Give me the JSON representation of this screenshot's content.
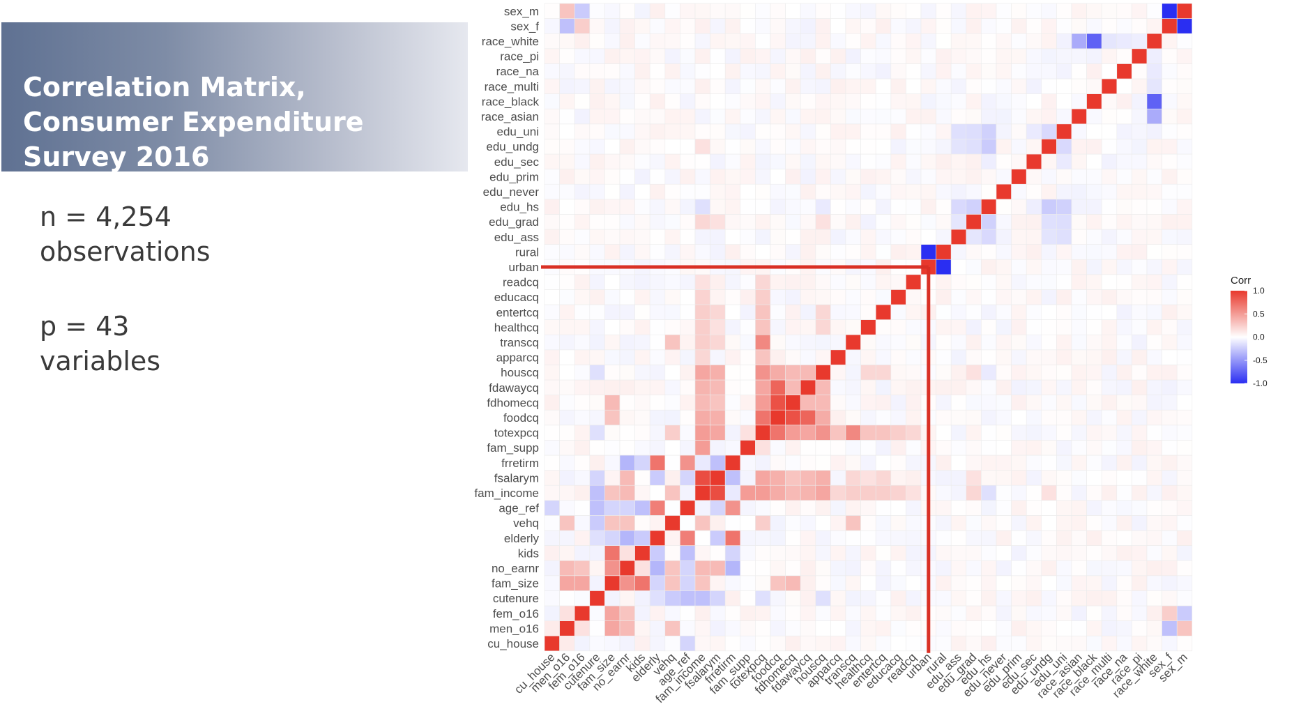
{
  "title": "Correlation Matrix, Consumer Expenditure Survey 2016",
  "stats": {
    "n": "n = 4,254",
    "n_label": "observations",
    "p": "p = 43",
    "p_label": "variables"
  },
  "chart_data": {
    "type": "heatmap",
    "variables": [
      "cu_house",
      "men_o16",
      "fem_o16",
      "cutenure",
      "fam_size",
      "no_earnr",
      "kids",
      "elderly",
      "vehq",
      "age_ref",
      "fam_income",
      "fsalarym",
      "frretirm",
      "fam_supp",
      "totexpcq",
      "foodcq",
      "fdhomecq",
      "fdawaycq",
      "houscq",
      "apparcq",
      "transcq",
      "healthcq",
      "entertcq",
      "educacq",
      "readcq",
      "urban",
      "rural",
      "edu_ass",
      "edu_grad",
      "edu_hs",
      "edu_never",
      "edu_prim",
      "edu_sec",
      "edu_undg",
      "edu_uni",
      "race_asian",
      "race_black",
      "race_multi",
      "race_na",
      "race_pi",
      "race_white",
      "sex_f",
      "sex_m"
    ],
    "legend": {
      "title": "Corr",
      "ticks": [
        "1.0",
        "0.5",
        "0.0",
        "-0.5",
        "-1.0"
      ],
      "placement": "right"
    },
    "colors": {
      "high": "#e8392d",
      "mid": "#ffffff",
      "low": "#2a2ef2",
      "grid": "#ececec",
      "highlight": "#d93025"
    },
    "highlight": {
      "row": "urban",
      "column": "urban"
    },
    "correlations": [
      {
        "a": "sex_m",
        "b": "sex_f",
        "r": -1.0
      },
      {
        "a": "urban",
        "b": "rural",
        "r": -1.0
      },
      {
        "a": "race_white",
        "b": "race_black",
        "r": -0.75
      },
      {
        "a": "race_white",
        "b": "race_asian",
        "r": -0.4
      },
      {
        "a": "race_white",
        "b": "race_multi",
        "r": -0.12
      },
      {
        "a": "race_white",
        "b": "race_na",
        "r": -0.1
      },
      {
        "a": "race_white",
        "b": "race_pi",
        "r": -0.08
      },
      {
        "a": "sex_m",
        "b": "men_o16",
        "r": 0.3
      },
      {
        "a": "sex_f",
        "b": "men_o16",
        "r": -0.3
      },
      {
        "a": "sex_f",
        "b": "fem_o16",
        "r": 0.25
      },
      {
        "a": "sex_m",
        "b": "fem_o16",
        "r": -0.25
      },
      {
        "a": "edu_uni",
        "b": "edu_hs",
        "r": -0.22
      },
      {
        "a": "edu_uni",
        "b": "edu_grad",
        "r": -0.16
      },
      {
        "a": "edu_uni",
        "b": "edu_ass",
        "r": -0.15
      },
      {
        "a": "edu_uni",
        "b": "edu_undg",
        "r": -0.18
      },
      {
        "a": "edu_uni",
        "b": "edu_sec",
        "r": -0.1
      },
      {
        "a": "edu_undg",
        "b": "edu_hs",
        "r": -0.25
      },
      {
        "a": "edu_undg",
        "b": "edu_grad",
        "r": -0.15
      },
      {
        "a": "edu_undg",
        "b": "edu_ass",
        "r": -0.13
      },
      {
        "a": "edu_hs",
        "b": "edu_grad",
        "r": -0.22
      },
      {
        "a": "edu_hs",
        "b": "edu_ass",
        "r": -0.18
      },
      {
        "a": "edu_grad",
        "b": "edu_ass",
        "r": -0.12
      },
      {
        "a": "edu_sec",
        "b": "edu_hs",
        "r": -0.08
      },
      {
        "a": "fam_income",
        "b": "fsalarym",
        "r": 0.9
      },
      {
        "a": "totexpcq",
        "b": "foodcq",
        "r": 0.7
      },
      {
        "a": "totexpcq",
        "b": "houscq",
        "r": 0.55
      },
      {
        "a": "totexpcq",
        "b": "transcq",
        "r": 0.6
      },
      {
        "a": "totexpcq",
        "b": "fdhomecq",
        "r": 0.5
      },
      {
        "a": "totexpcq",
        "b": "fdawaycq",
        "r": 0.45
      },
      {
        "a": "totexpcq",
        "b": "entertcq",
        "r": 0.3
      },
      {
        "a": "totexpcq",
        "b": "healthcq",
        "r": 0.3
      },
      {
        "a": "totexpcq",
        "b": "apparcq",
        "r": 0.3
      },
      {
        "a": "totexpcq",
        "b": "educacq",
        "r": 0.25
      },
      {
        "a": "totexpcq",
        "b": "readcq",
        "r": 0.2
      },
      {
        "a": "foodcq",
        "b": "fdhomecq",
        "r": 0.88
      },
      {
        "a": "foodcq",
        "b": "fdawaycq",
        "r": 0.78
      },
      {
        "a": "fdhomecq",
        "b": "fdawaycq",
        "r": 0.35
      },
      {
        "a": "foodcq",
        "b": "houscq",
        "r": 0.42
      },
      {
        "a": "fdhomecq",
        "b": "houscq",
        "r": 0.35
      },
      {
        "a": "fdawaycq",
        "b": "houscq",
        "r": 0.35
      },
      {
        "a": "houscq",
        "b": "entertcq",
        "r": 0.2
      },
      {
        "a": "houscq",
        "b": "healthcq",
        "r": 0.2
      },
      {
        "a": "fam_income",
        "b": "totexpcq",
        "r": 0.5
      },
      {
        "a": "fam_income",
        "b": "foodcq",
        "r": 0.42
      },
      {
        "a": "fam_income",
        "b": "fdhomecq",
        "r": 0.35
      },
      {
        "a": "fam_income",
        "b": "fdawaycq",
        "r": 0.38
      },
      {
        "a": "fam_income",
        "b": "houscq",
        "r": 0.45
      },
      {
        "a": "fam_income",
        "b": "transcq",
        "r": 0.25
      },
      {
        "a": "fam_income",
        "b": "entertcq",
        "r": 0.25
      },
      {
        "a": "fam_income",
        "b": "healthcq",
        "r": 0.25
      },
      {
        "a": "fam_income",
        "b": "apparcq",
        "r": 0.2
      },
      {
        "a": "fam_income",
        "b": "educacq",
        "r": 0.22
      },
      {
        "a": "fam_income",
        "b": "readcq",
        "r": 0.15
      },
      {
        "a": "fsalarym",
        "b": "totexpcq",
        "r": 0.45
      },
      {
        "a": "fsalarym",
        "b": "foodcq",
        "r": 0.4
      },
      {
        "a": "fsalarym",
        "b": "fdhomecq",
        "r": 0.3
      },
      {
        "a": "fsalarym",
        "b": "fdawaycq",
        "r": 0.35
      },
      {
        "a": "fsalarym",
        "b": "houscq",
        "r": 0.4
      },
      {
        "a": "fsalarym",
        "b": "transcq",
        "r": 0.2
      },
      {
        "a": "fsalarym",
        "b": "entertcq",
        "r": 0.2
      },
      {
        "a": "fsalarym",
        "b": "healthcq",
        "r": 0.15
      },
      {
        "a": "fam_supp",
        "b": "fam_income",
        "r": 0.5
      },
      {
        "a": "fam_supp",
        "b": "totexpcq",
        "r": 0.15
      },
      {
        "a": "frretirm",
        "b": "elderly",
        "r": 0.7
      },
      {
        "a": "frretirm",
        "b": "age_ref",
        "r": 0.55
      },
      {
        "a": "frretirm",
        "b": "no_earnr",
        "r": -0.35
      },
      {
        "a": "frretirm",
        "b": "kids",
        "r": -0.2
      },
      {
        "a": "frretirm",
        "b": "fsalarym",
        "r": -0.3
      },
      {
        "a": "frretirm",
        "b": "fam_income",
        "r": -0.1
      },
      {
        "a": "elderly",
        "b": "age_ref",
        "r": 0.65
      },
      {
        "a": "elderly",
        "b": "kids",
        "r": -0.25
      },
      {
        "a": "elderly",
        "b": "fam_size",
        "r": -0.2
      },
      {
        "a": "elderly",
        "b": "no_earnr",
        "r": -0.35
      },
      {
        "a": "elderly",
        "b": "fsalarym",
        "r": -0.25
      },
      {
        "a": "elderly",
        "b": "cutenure",
        "r": -0.15
      },
      {
        "a": "age_ref",
        "b": "kids",
        "r": -0.3
      },
      {
        "a": "age_ref",
        "b": "fam_size",
        "r": -0.2
      },
      {
        "a": "age_ref",
        "b": "no_earnr",
        "r": -0.2
      },
      {
        "a": "age_ref",
        "b": "cutenure",
        "r": -0.3
      },
      {
        "a": "age_ref",
        "b": "cu_house",
        "r": -0.2
      },
      {
        "a": "age_ref",
        "b": "fsalarym",
        "r": -0.2
      },
      {
        "a": "no_earnr",
        "b": "fam_size",
        "r": 0.55
      },
      {
        "a": "no_earnr",
        "b": "kids",
        "r": 0.15
      },
      {
        "a": "no_earnr",
        "b": "fsalarym",
        "r": 0.35
      },
      {
        "a": "no_earnr",
        "b": "fam_income",
        "r": 0.35
      },
      {
        "a": "no_earnr",
        "b": "men_o16",
        "r": 0.35
      },
      {
        "a": "no_earnr",
        "b": "fem_o16",
        "r": 0.3
      },
      {
        "a": "kids",
        "b": "fam_size",
        "r": 0.7
      },
      {
        "a": "fam_size",
        "b": "men_o16",
        "r": 0.45
      },
      {
        "a": "fam_size",
        "b": "fem_o16",
        "r": 0.45
      },
      {
        "a": "fam_size",
        "b": "fam_income",
        "r": 0.3
      },
      {
        "a": "fam_size",
        "b": "foodcq",
        "r": 0.3
      },
      {
        "a": "fam_size",
        "b": "fdhomecq",
        "r": 0.35
      },
      {
        "a": "cutenure",
        "b": "vehq",
        "r": -0.25
      },
      {
        "a": "cutenure",
        "b": "fam_income",
        "r": -0.3
      },
      {
        "a": "cutenure",
        "b": "fsalarym",
        "r": -0.2
      },
      {
        "a": "cutenure",
        "b": "houscq",
        "r": -0.15
      },
      {
        "a": "cutenure",
        "b": "totexpcq",
        "r": -0.15
      },
      {
        "a": "vehq",
        "b": "fam_income",
        "r": 0.3
      },
      {
        "a": "vehq",
        "b": "totexpcq",
        "r": 0.25
      },
      {
        "a": "vehq",
        "b": "transcq",
        "r": 0.3
      },
      {
        "a": "vehq",
        "b": "men_o16",
        "r": 0.3
      },
      {
        "a": "vehq",
        "b": "fam_size",
        "r": 0.3
      },
      {
        "a": "vehq",
        "b": "no_earnr",
        "r": 0.3
      },
      {
        "a": "men_o16",
        "b": "fem_o16",
        "r": 0.15
      },
      {
        "a": "cu_house",
        "b": "men_o16",
        "r": 0.1
      },
      {
        "a": "edu_grad",
        "b": "fam_income",
        "r": 0.2
      },
      {
        "a": "edu_grad",
        "b": "fsalarym",
        "r": 0.15
      },
      {
        "a": "edu_hs",
        "b": "fam_income",
        "r": -0.15
      },
      {
        "a": "edu_undg",
        "b": "fam_income",
        "r": 0.15
      },
      {
        "a": "edu_hs",
        "b": "houscq",
        "r": -0.1
      },
      {
        "a": "edu_grad",
        "b": "houscq",
        "r": 0.15
      }
    ]
  }
}
